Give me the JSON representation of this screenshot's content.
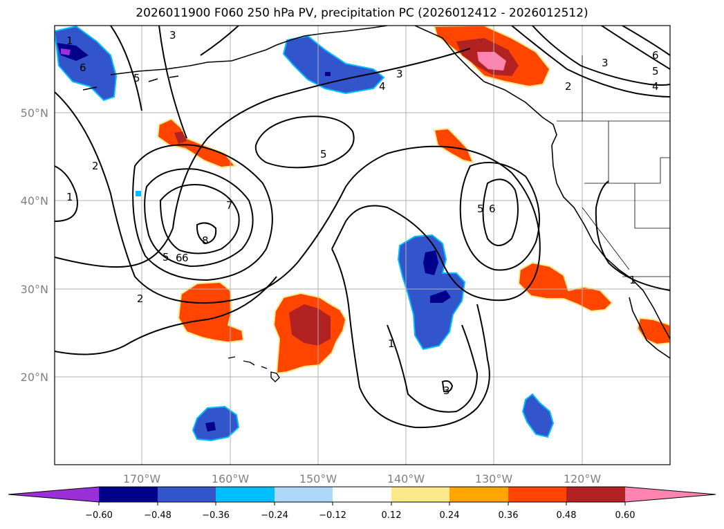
{
  "title": "2026011900 F060 250 hPa PV, precipitation PC (2026012412 - 2026012512)",
  "map": {
    "lon_labels": [
      "170°W",
      "160°W",
      "150°W",
      "140°W",
      "130°W",
      "120°W"
    ],
    "lat_labels": [
      "50°N",
      "40°N",
      "30°N",
      "20°N"
    ],
    "contour_labels": [
      "1",
      "2",
      "1",
      "5",
      "6",
      "3",
      "4",
      "3",
      "2",
      "3",
      "6",
      "5",
      "4",
      "5",
      "5",
      "6",
      "6",
      "7",
      "8",
      "5",
      "6",
      "2",
      "1",
      "3",
      "1"
    ]
  },
  "colorbar": {
    "colors": [
      "#9b30d9",
      "#00008b",
      "#3355cc",
      "#00bfff",
      "#add8f7",
      "#ffffff",
      "#fbe88a",
      "#ffa500",
      "#ff4500",
      "#b22222",
      "#ff85b0"
    ],
    "ticks": [
      "−0.60",
      "−0.48",
      "−0.36",
      "−0.24",
      "−0.12",
      "0.12",
      "0.24",
      "0.36",
      "0.48",
      "0.60"
    ]
  }
}
